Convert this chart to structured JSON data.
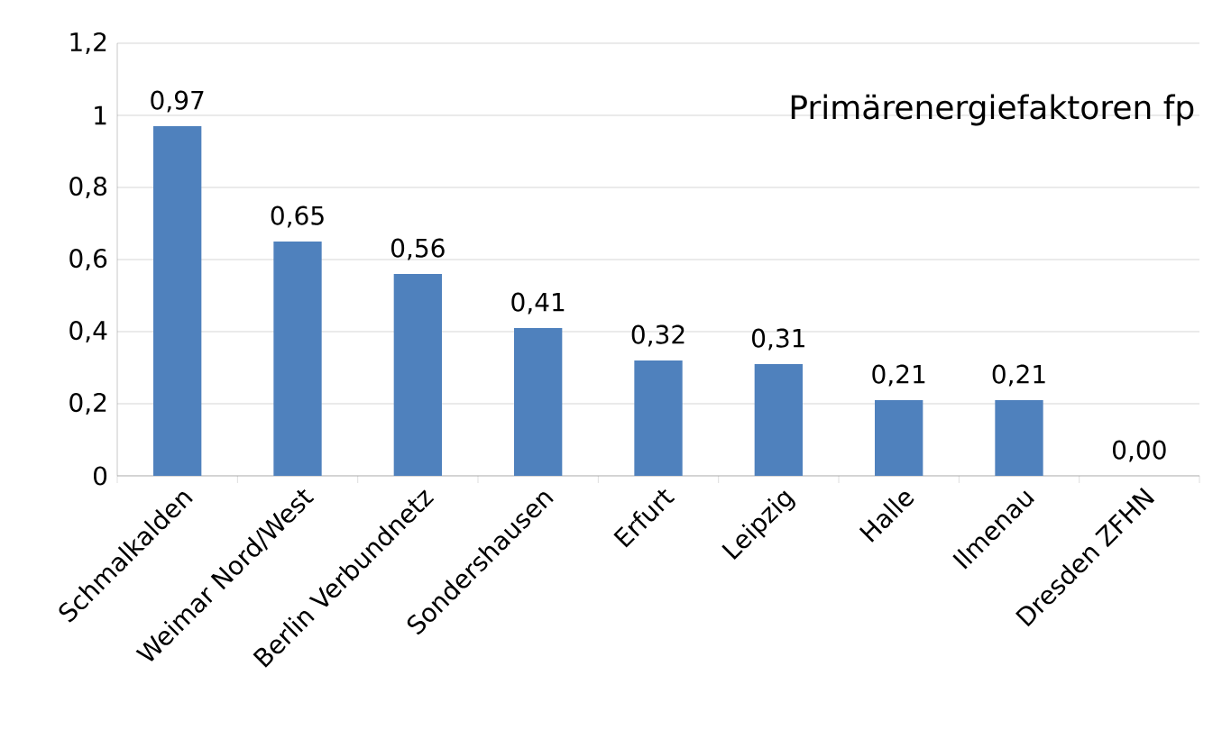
{
  "chart_data": {
    "type": "bar",
    "title": "Primärenergiefaktoren fp",
    "categories": [
      "Schmalkalden",
      "Weimar Nord/West",
      "Berlin Verbundnetz",
      "Sondershausen",
      "Erfurt",
      "Leipzig",
      "Halle",
      "Ilmenau",
      "Dresden ZFHN"
    ],
    "values": [
      0.97,
      0.65,
      0.56,
      0.41,
      0.32,
      0.31,
      0.21,
      0.21,
      0.0
    ],
    "value_labels": [
      "0,97",
      "0,65",
      "0,56",
      "0,41",
      "0,32",
      "0,31",
      "0,21",
      "0,21",
      "0,00"
    ],
    "color": "#4f81bd",
    "ylim": [
      0,
      1.2
    ],
    "yticks": [
      0,
      {
        "value": 0.2,
        "label": "0,2"
      },
      {
        "value": 0.4,
        "label": "0,4"
      },
      {
        "value": 0.6,
        "label": "0,6"
      },
      {
        "value": 0.8,
        "label": "0,8"
      },
      1,
      {
        "value": 1.2,
        "label": "1,2"
      }
    ],
    "grid": "y"
  }
}
